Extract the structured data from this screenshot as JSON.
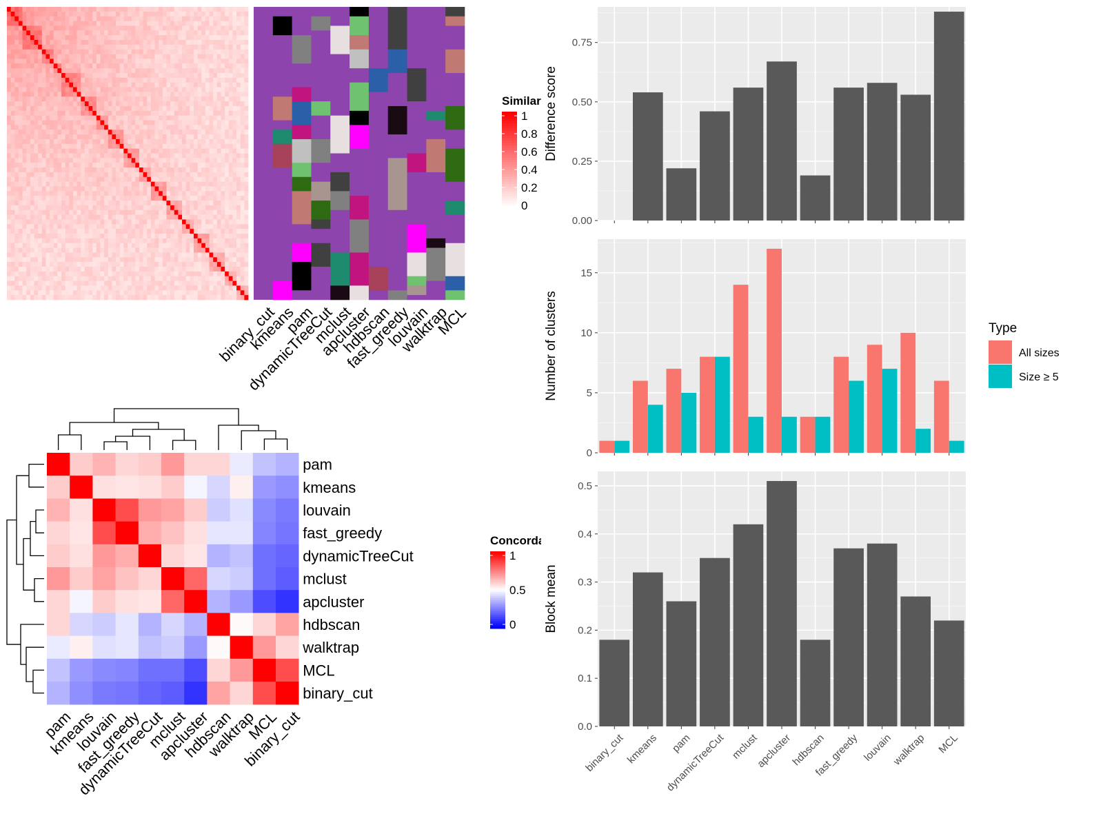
{
  "methods": [
    "binary_cut",
    "kmeans",
    "pam",
    "dynamicTreeCut",
    "mclust",
    "apcluster",
    "hdbscan",
    "fast_greedy",
    "louvain",
    "walktrap",
    "MCL"
  ],
  "similarity_heatmap": {
    "legend_title": "Similarity",
    "legend_ticks": [
      "1",
      "0.8",
      "0.6",
      "0.4",
      "0.2",
      "0"
    ],
    "n_terms": 62,
    "diagonal_blocks": [
      [
        0,
        4
      ],
      [
        4,
        9
      ],
      [
        9,
        12
      ],
      [
        12,
        14
      ],
      [
        14,
        19
      ],
      [
        19,
        23
      ],
      [
        23,
        26
      ],
      [
        26,
        30
      ],
      [
        30,
        34
      ],
      [
        34,
        37
      ],
      [
        37,
        41
      ],
      [
        41,
        45
      ],
      [
        45,
        48
      ],
      [
        48,
        52
      ],
      [
        52,
        56
      ],
      [
        56,
        59
      ],
      [
        59,
        62
      ]
    ],
    "colors": {
      "low": "#ffffff",
      "high": "#ff0000"
    }
  },
  "partition_heatmap": {
    "background_color": "#8e44ad",
    "palette": [
      "#8e44ad",
      "#1a0a14",
      "#a89590",
      "#2d6a12",
      "#404040",
      "#2b5fa8",
      "#808080",
      "#000000",
      "#c17a73",
      "#c2147e",
      "#ff00ff",
      "#6fc26f",
      "#1e8a6e",
      "#a8415a",
      "#c0c0c0",
      "#e8e0e0"
    ]
  },
  "concordance_heatmap": {
    "legend_title": "Concordance",
    "legend_ticks": [
      "1",
      "0.5",
      "0"
    ],
    "row_order": [
      "pam",
      "kmeans",
      "louvain",
      "fast_greedy",
      "dynamicTreeCut",
      "mclust",
      "apcluster",
      "hdbscan",
      "walktrap",
      "MCL",
      "binary_cut"
    ],
    "col_order": [
      "pam",
      "kmeans",
      "louvain",
      "fast_greedy",
      "dynamicTreeCut",
      "mclust",
      "apcluster",
      "hdbscan",
      "walktrap",
      "MCL",
      "binary_cut"
    ],
    "matrix": [
      [
        1.0,
        0.6,
        0.65,
        0.58,
        0.6,
        0.7,
        0.58,
        0.58,
        0.46,
        0.38,
        0.35
      ],
      [
        0.6,
        1.0,
        0.56,
        0.55,
        0.56,
        0.6,
        0.48,
        0.42,
        0.53,
        0.3,
        0.28
      ],
      [
        0.65,
        0.56,
        1.0,
        0.85,
        0.7,
        0.68,
        0.6,
        0.4,
        0.44,
        0.27,
        0.24
      ],
      [
        0.58,
        0.55,
        0.85,
        1.0,
        0.66,
        0.62,
        0.56,
        0.45,
        0.45,
        0.26,
        0.23
      ],
      [
        0.6,
        0.56,
        0.7,
        0.66,
        1.0,
        0.58,
        0.55,
        0.35,
        0.38,
        0.22,
        0.2
      ],
      [
        0.7,
        0.6,
        0.68,
        0.62,
        0.58,
        1.0,
        0.8,
        0.42,
        0.4,
        0.22,
        0.18
      ],
      [
        0.58,
        0.48,
        0.6,
        0.56,
        0.55,
        0.8,
        1.0,
        0.35,
        0.3,
        0.15,
        0.1
      ],
      [
        0.58,
        0.42,
        0.4,
        0.45,
        0.35,
        0.42,
        0.35,
        1.0,
        0.51,
        0.58,
        0.68
      ],
      [
        0.46,
        0.53,
        0.44,
        0.45,
        0.38,
        0.4,
        0.3,
        0.51,
        1.0,
        0.7,
        0.58
      ],
      [
        0.38,
        0.3,
        0.27,
        0.26,
        0.22,
        0.22,
        0.15,
        0.58,
        0.7,
        1.0,
        0.85
      ],
      [
        0.35,
        0.28,
        0.24,
        0.23,
        0.2,
        0.18,
        0.1,
        0.68,
        0.58,
        0.85,
        1.0
      ]
    ]
  },
  "chart_data": [
    {
      "type": "bar",
      "categories": [
        "binary_cut",
        "kmeans",
        "pam",
        "dynamicTreeCut",
        "mclust",
        "apcluster",
        "hdbscan",
        "fast_greedy",
        "louvain",
        "walktrap",
        "MCL"
      ],
      "values": [
        0,
        0.54,
        0.22,
        0.46,
        0.56,
        0.67,
        0.19,
        0.56,
        0.58,
        0.53,
        0.88
      ],
      "ylabel": "Difference score",
      "yticks": [
        "0.00",
        "0.25",
        "0.50",
        "0.75"
      ],
      "ylim": [
        0,
        0.9
      ],
      "color": "#595959"
    },
    {
      "type": "bar",
      "categories": [
        "binary_cut",
        "kmeans",
        "pam",
        "dynamicTreeCut",
        "mclust",
        "apcluster",
        "hdbscan",
        "fast_greedy",
        "louvain",
        "walktrap",
        "MCL"
      ],
      "series": [
        {
          "name": "All sizes",
          "values": [
            1,
            6,
            7,
            8,
            14,
            17,
            3,
            8,
            9,
            10,
            6
          ],
          "color": "#f8766d"
        },
        {
          "name": "Size ≥ 5",
          "values": [
            1,
            4,
            5,
            8,
            3,
            3,
            3,
            6,
            7,
            2,
            1
          ],
          "color": "#00bfc4"
        }
      ],
      "ylabel": "Number of clusters",
      "yticks": [
        "0",
        "5",
        "10",
        "15"
      ],
      "ylim": [
        0,
        17.8
      ],
      "legend_title": "Type",
      "legend_position": "right"
    },
    {
      "type": "bar",
      "categories": [
        "binary_cut",
        "kmeans",
        "pam",
        "dynamicTreeCut",
        "mclust",
        "apcluster",
        "hdbscan",
        "fast_greedy",
        "louvain",
        "walktrap",
        "MCL"
      ],
      "values": [
        0.18,
        0.32,
        0.26,
        0.35,
        0.42,
        0.51,
        0.18,
        0.37,
        0.38,
        0.27,
        0.22
      ],
      "ylabel": "Block mean",
      "yticks": [
        "0.0",
        "0.1",
        "0.2",
        "0.3",
        "0.4",
        "0.5"
      ],
      "ylim": [
        0,
        0.53
      ],
      "color": "#595959"
    }
  ]
}
